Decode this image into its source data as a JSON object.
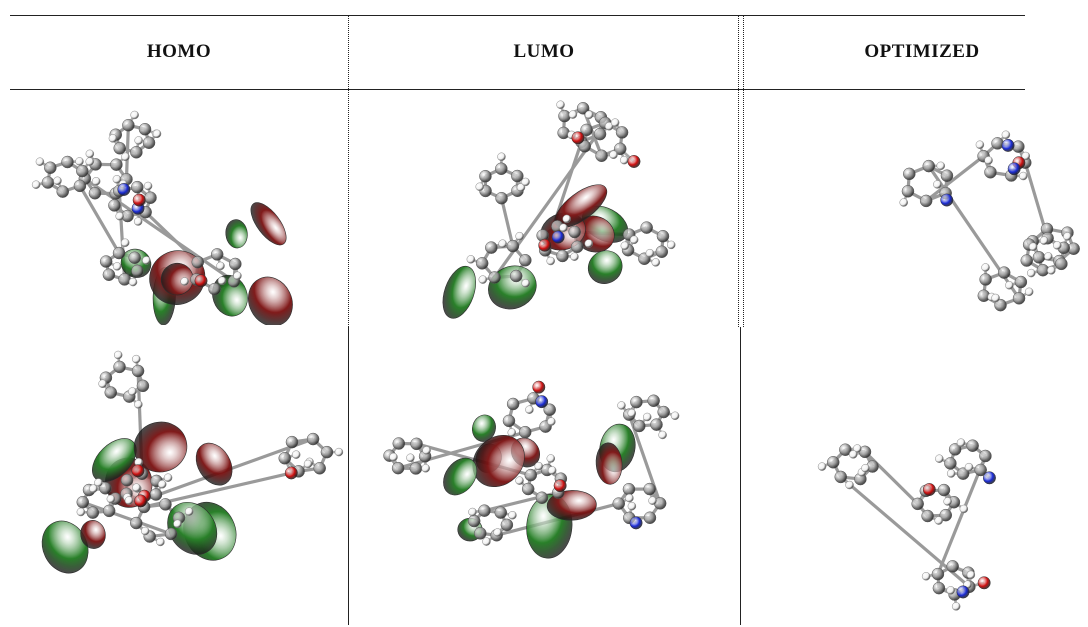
{
  "table": {
    "headers": [
      "HOMO",
      "LUMO",
      "OPTIMIZED"
    ]
  },
  "colors": {
    "lobe_positive": "#7a0e0e",
    "lobe_negative": "#1e7a1e",
    "carbon": "#8c8c8c",
    "hydrogen": "#f0f0f0",
    "oxygen": "#d01010",
    "nitrogen": "#1a2bd6"
  },
  "panels": [
    {
      "row": 1,
      "column": "HOMO",
      "image": "homo-orbital-structure-1"
    },
    {
      "row": 1,
      "column": "LUMO",
      "image": "lumo-orbital-structure-1"
    },
    {
      "row": 1,
      "column": "OPTIMIZED",
      "image": "optimized-structure-1"
    },
    {
      "row": 2,
      "column": "HOMO",
      "image": "homo-orbital-structure-2"
    },
    {
      "row": 2,
      "column": "LUMO",
      "image": "lumo-orbital-structure-2"
    },
    {
      "row": 2,
      "column": "OPTIMIZED",
      "image": "optimized-structure-2"
    }
  ]
}
